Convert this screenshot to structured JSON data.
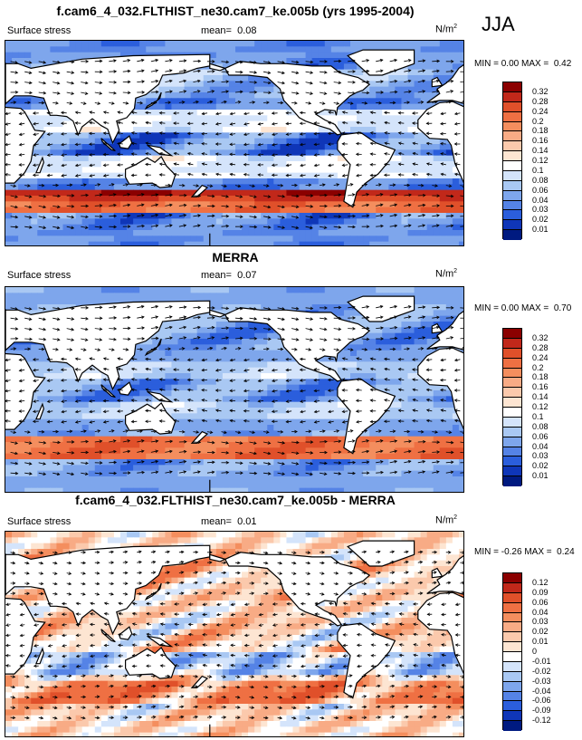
{
  "season": "JJA",
  "panels": [
    {
      "title": "f.cam6_4_032.FLTHIST_ne30.cam7_ke.005b (yrs 1995-2004)",
      "variable": "Surface stress",
      "mean_label": "mean=",
      "mean_value": "0.08",
      "units": "N/m",
      "units_sup": "2",
      "min_label": "MIN =",
      "min_value": "0.00",
      "max_label": "MAX =",
      "max_value": "0.42",
      "colorbar_ticks": [
        "0.32",
        "0.28",
        "0.24",
        "0.2",
        "0.18",
        "0.16",
        "0.14",
        "0.12",
        "0.1",
        "0.08",
        "0.06",
        "0.04",
        "0.03",
        "0.02",
        "0.01"
      ],
      "colors": [
        "#8b0000",
        "#c1281a",
        "#e0502a",
        "#ef7043",
        "#f48e5e",
        "#f8ab85",
        "#fbc9ac",
        "#fde5d2",
        "#ffffff",
        "#d4e4fb",
        "#a9c8f3",
        "#7ea6ec",
        "#5583e6",
        "#2b5edc",
        "#0f36b8",
        "#001a80"
      ]
    },
    {
      "title": "MERRA",
      "variable": "Surface stress",
      "mean_label": "mean=",
      "mean_value": "0.07",
      "units": "N/m",
      "units_sup": "2",
      "min_label": "MIN =",
      "min_value": "0.00",
      "max_label": "MAX =",
      "max_value": "0.70",
      "colorbar_ticks": [
        "0.32",
        "0.28",
        "0.24",
        "0.2",
        "0.18",
        "0.16",
        "0.14",
        "0.12",
        "0.1",
        "0.08",
        "0.06",
        "0.04",
        "0.03",
        "0.02",
        "0.01"
      ],
      "colors": [
        "#8b0000",
        "#c1281a",
        "#e0502a",
        "#ef7043",
        "#f48e5e",
        "#f8ab85",
        "#fbc9ac",
        "#fde5d2",
        "#ffffff",
        "#d4e4fb",
        "#a9c8f3",
        "#7ea6ec",
        "#5583e6",
        "#2b5edc",
        "#0f36b8",
        "#001a80"
      ]
    },
    {
      "title": "f.cam6_4_032.FLTHIST_ne30.cam7_ke.005b - MERRA",
      "variable": "Surface stress",
      "mean_label": "mean=",
      "mean_value": "0.01",
      "units": "N/m",
      "units_sup": "2",
      "min_label": "MIN =",
      "min_value": "-0.26",
      "max_label": "MAX =",
      "max_value": "0.24",
      "colorbar_ticks": [
        "0.12",
        "0.09",
        "0.06",
        "0.04",
        "0.03",
        "0.02",
        "0.01",
        "0",
        "-0.01",
        "-0.02",
        "-0.03",
        "-0.04",
        "-0.06",
        "-0.09",
        "-0.12"
      ],
      "colors": [
        "#8b0000",
        "#c1281a",
        "#e0502a",
        "#ef7043",
        "#f48e5e",
        "#f8ab85",
        "#fbc9ac",
        "#fde5d2",
        "#ffffff",
        "#d4e4fb",
        "#a9c8f3",
        "#7ea6ec",
        "#5583e6",
        "#2b5edc",
        "#0f36b8",
        "#001a80"
      ]
    }
  ]
}
